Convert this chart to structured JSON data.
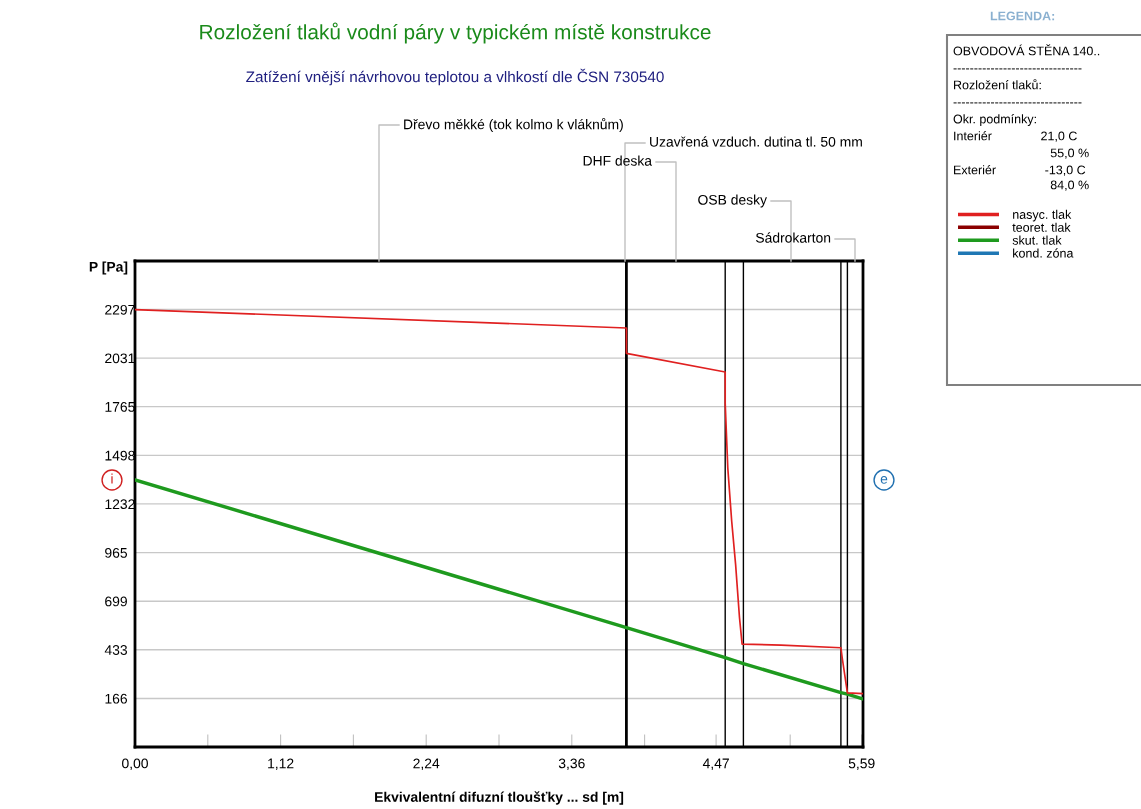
{
  "chart_data": {
    "type": "line",
    "title": "Rozložení tlaků vodní páry v typickém místě konstrukce",
    "subtitle": "Zatížení vnější návrhovou teplotou a vlhkostí dle ČSN 730540",
    "xlabel": "Ekvivalentní difuzní tloušťky ... sd [m]",
    "ylabel": "P [Pa]",
    "legend_title": "LEGENDA:",
    "xlim": [
      0,
      5.6
    ],
    "ylim": [
      -100,
      2563
    ],
    "xticks": [
      {
        "value": 0,
        "label": "0,00"
      },
      {
        "value": 0.56,
        "label": null
      },
      {
        "value": 1.12,
        "label": "1,12"
      },
      {
        "value": 1.68,
        "label": null
      },
      {
        "value": 2.24,
        "label": "2,24"
      },
      {
        "value": 2.8,
        "label": null
      },
      {
        "value": 3.36,
        "label": "3,36"
      },
      {
        "value": 3.92,
        "label": null
      },
      {
        "value": 4.47,
        "label": "4,47"
      },
      {
        "value": 5.04,
        "label": null
      },
      {
        "value": 5.59,
        "label": "5,59"
      }
    ],
    "yticks": [
      166,
      433,
      699,
      965,
      1232,
      1498,
      1765,
      2031,
      2297
    ],
    "grid": "y",
    "legend": "right",
    "line_style": "solid",
    "marker": "none",
    "series": [
      {
        "name": "nasyc. tlak",
        "color": "#e02020",
        "x": [
          0,
          3.78,
          3.78,
          4.54,
          4.54,
          4.56,
          4.59,
          4.62,
          4.65,
          4.67,
          4.97,
          5.43,
          5.44,
          5.48,
          5.6
        ],
        "values": [
          2297,
          2196,
          2057,
          1955,
          1784,
          1428,
          1137,
          901,
          608,
          464,
          458,
          444,
          389,
          197,
          192
        ]
      },
      {
        "name": "teoret. tlak",
        "color": "#8b0000"
      },
      {
        "name": "skut. tlak",
        "color": "#1e9a1e",
        "x": [
          0,
          3.78,
          4.54,
          4.68,
          5.43,
          5.48,
          5.6
        ],
        "values": [
          1364,
          554,
          390,
          357,
          198,
          190,
          163
        ]
      },
      {
        "name": "kond. zóna",
        "color": "#1f77b4"
      }
    ],
    "ref_lines": [
      {
        "axis": "x",
        "value": 3.78,
        "color": "#000000"
      },
      {
        "axis": "x",
        "value": 4.54,
        "color": "#000000"
      },
      {
        "axis": "x",
        "value": 4.68,
        "color": "#000000"
      },
      {
        "axis": "x",
        "value": 5.43,
        "color": "#000000"
      },
      {
        "axis": "x",
        "value": 5.48,
        "color": "#000000"
      }
    ],
    "annotations": [
      "Dřevo měkké (tok kolmo k vláknům)",
      "Uzavřená vzduch. dutina tl. 50 mm",
      "DHF deska",
      "OSB desky",
      "Sádrokarton",
      "i",
      "e",
      "OBVODOVÁ STĚNA 140..",
      "-------------------------------",
      "Rozložení tlaků:",
      "-------------------------------",
      "Okr. podmínky:",
      "Interiér              21,0 C",
      "                            55,0 %",
      "Exteriér              -13,0 C",
      "                            84,0 %"
    ]
  }
}
